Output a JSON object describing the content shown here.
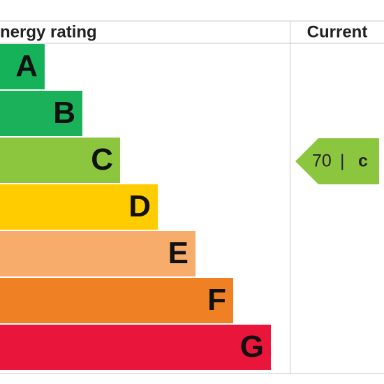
{
  "header": {
    "rating_label": "nergy rating",
    "current_label": "Current"
  },
  "bands": [
    {
      "letter": "A",
      "color": "#16b25a"
    },
    {
      "letter": "B",
      "color": "#1bb15b"
    },
    {
      "letter": "C",
      "color": "#8cc63f"
    },
    {
      "letter": "D",
      "color": "#ffcc00"
    },
    {
      "letter": "E",
      "color": "#f7ac6b"
    },
    {
      "letter": "F",
      "color": "#ef8023"
    },
    {
      "letter": "G",
      "color": "#e9153b"
    }
  ],
  "current": {
    "score": 70,
    "separator": "|",
    "band": "c",
    "color": "#8cc63f"
  }
}
